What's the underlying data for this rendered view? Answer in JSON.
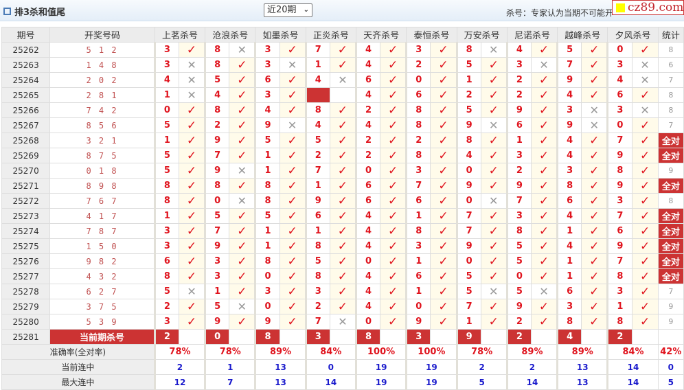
{
  "header": {
    "title": "排3杀和值尾",
    "period_select": "近20期",
    "note": "杀号：专家认为当期不可能开",
    "logo": "cz89.com"
  },
  "columns": {
    "issue": "期号",
    "draw": "开奖号码",
    "experts": [
      "上茗杀号",
      "沧浪杀号",
      "如墨杀号",
      "正炎杀号",
      "天齐杀号",
      "泰恒杀号",
      "万安杀号",
      "尼诺杀号",
      "越峰杀号",
      "夕风杀号"
    ],
    "stat": "统计"
  },
  "all_correct_label": "全对",
  "rows": [
    {
      "issue": "25262",
      "draw": "5 1 2",
      "kill": [
        "3",
        "8",
        "3",
        "7",
        "4",
        "3",
        "8",
        "4",
        "5",
        "0"
      ],
      "hit": [
        1,
        0,
        1,
        1,
        1,
        1,
        0,
        1,
        1,
        1
      ],
      "stat": "8"
    },
    {
      "issue": "25263",
      "draw": "1 4 8",
      "kill": [
        "3",
        "8",
        "3",
        "1",
        "4",
        "2",
        "5",
        "3",
        "7",
        "3"
      ],
      "hit": [
        0,
        1,
        0,
        1,
        1,
        1,
        1,
        0,
        1,
        0
      ],
      "stat": "6"
    },
    {
      "issue": "25264",
      "draw": "2 0 2",
      "kill": [
        "4",
        "5",
        "6",
        "4",
        "6",
        "0",
        "1",
        "2",
        "9",
        "4"
      ],
      "hit": [
        0,
        1,
        1,
        0,
        1,
        1,
        1,
        1,
        1,
        0
      ],
      "stat": "7"
    },
    {
      "issue": "25265",
      "draw": "2 8 1",
      "kill": [
        "1",
        "4",
        "3",
        null,
        "4",
        "6",
        "2",
        "2",
        "4",
        "6"
      ],
      "hit": [
        0,
        1,
        1,
        null,
        1,
        1,
        1,
        1,
        1,
        1
      ],
      "stat": "8"
    },
    {
      "issue": "25266",
      "draw": "7 4 2",
      "kill": [
        "0",
        "8",
        "4",
        "8",
        "2",
        "8",
        "5",
        "9",
        "3",
        "3"
      ],
      "hit": [
        1,
        1,
        1,
        1,
        1,
        1,
        1,
        1,
        0,
        0
      ],
      "stat": "8"
    },
    {
      "issue": "25267",
      "draw": "8 5 6",
      "kill": [
        "5",
        "2",
        "9",
        "4",
        "4",
        "8",
        "9",
        "6",
        "9",
        "0"
      ],
      "hit": [
        1,
        1,
        0,
        1,
        1,
        1,
        0,
        1,
        0,
        1
      ],
      "stat": "7"
    },
    {
      "issue": "25268",
      "draw": "3 2 1",
      "kill": [
        "1",
        "9",
        "5",
        "5",
        "2",
        "2",
        "8",
        "1",
        "4",
        "7"
      ],
      "hit": [
        1,
        1,
        1,
        1,
        1,
        1,
        1,
        1,
        1,
        1
      ],
      "stat": "全对"
    },
    {
      "issue": "25269",
      "draw": "8 7 5",
      "kill": [
        "5",
        "7",
        "1",
        "2",
        "2",
        "8",
        "4",
        "3",
        "4",
        "9"
      ],
      "hit": [
        1,
        1,
        1,
        1,
        1,
        1,
        1,
        1,
        1,
        1
      ],
      "stat": "全对"
    },
    {
      "issue": "25270",
      "draw": "0 1 8",
      "kill": [
        "5",
        "9",
        "1",
        "7",
        "0",
        "3",
        "0",
        "2",
        "3",
        "8"
      ],
      "hit": [
        1,
        0,
        1,
        1,
        1,
        1,
        1,
        1,
        1,
        1
      ],
      "stat": "9"
    },
    {
      "issue": "25271",
      "draw": "8 9 8",
      "kill": [
        "8",
        "8",
        "8",
        "1",
        "6",
        "7",
        "9",
        "9",
        "8",
        "9"
      ],
      "hit": [
        1,
        1,
        1,
        1,
        1,
        1,
        1,
        1,
        1,
        1
      ],
      "stat": "全对"
    },
    {
      "issue": "25272",
      "draw": "7 6 7",
      "kill": [
        "8",
        "0",
        "8",
        "9",
        "6",
        "6",
        "0",
        "7",
        "6",
        "3"
      ],
      "hit": [
        1,
        0,
        1,
        1,
        1,
        1,
        0,
        1,
        1,
        1
      ],
      "stat": "8"
    },
    {
      "issue": "25273",
      "draw": "4 1 7",
      "kill": [
        "1",
        "5",
        "5",
        "6",
        "4",
        "1",
        "7",
        "3",
        "4",
        "7"
      ],
      "hit": [
        1,
        1,
        1,
        1,
        1,
        1,
        1,
        1,
        1,
        1
      ],
      "stat": "全对"
    },
    {
      "issue": "25274",
      "draw": "7 8 7",
      "kill": [
        "3",
        "7",
        "1",
        "1",
        "4",
        "8",
        "7",
        "8",
        "1",
        "6"
      ],
      "hit": [
        1,
        1,
        1,
        1,
        1,
        1,
        1,
        1,
        1,
        1
      ],
      "stat": "全对"
    },
    {
      "issue": "25275",
      "draw": "1 5 0",
      "kill": [
        "3",
        "9",
        "1",
        "8",
        "4",
        "3",
        "9",
        "5",
        "4",
        "9"
      ],
      "hit": [
        1,
        1,
        1,
        1,
        1,
        1,
        1,
        1,
        1,
        1
      ],
      "stat": "全对"
    },
    {
      "issue": "25276",
      "draw": "9 8 2",
      "kill": [
        "6",
        "3",
        "8",
        "5",
        "0",
        "1",
        "0",
        "5",
        "1",
        "7"
      ],
      "hit": [
        1,
        1,
        1,
        1,
        1,
        1,
        1,
        1,
        1,
        1
      ],
      "stat": "全对"
    },
    {
      "issue": "25277",
      "draw": "4 3 2",
      "kill": [
        "8",
        "3",
        "0",
        "8",
        "4",
        "6",
        "5",
        "0",
        "1",
        "8"
      ],
      "hit": [
        1,
        1,
        1,
        1,
        1,
        1,
        1,
        1,
        1,
        1
      ],
      "stat": "全对"
    },
    {
      "issue": "25278",
      "draw": "6 2 7",
      "kill": [
        "5",
        "1",
        "3",
        "3",
        "4",
        "1",
        "5",
        "5",
        "6",
        "3"
      ],
      "hit": [
        0,
        1,
        1,
        1,
        1,
        1,
        0,
        0,
        1,
        1
      ],
      "stat": "7"
    },
    {
      "issue": "25279",
      "draw": "3 7 5",
      "kill": [
        "2",
        "5",
        "0",
        "2",
        "4",
        "0",
        "7",
        "9",
        "3",
        "1"
      ],
      "hit": [
        1,
        0,
        1,
        1,
        1,
        1,
        1,
        1,
        1,
        1
      ],
      "stat": "9"
    },
    {
      "issue": "25280",
      "draw": "5 3 9",
      "kill": [
        "3",
        "9",
        "9",
        "7",
        "0",
        "9",
        "1",
        "2",
        "8",
        "8"
      ],
      "hit": [
        1,
        1,
        1,
        0,
        1,
        1,
        1,
        1,
        1,
        1
      ],
      "stat": "9"
    }
  ],
  "current": {
    "issue": "25281",
    "label": "当前期杀号",
    "kill": [
      "2",
      "0",
      "8",
      "3",
      "8",
      "3",
      "9",
      "2",
      "4",
      "2"
    ]
  },
  "summary": [
    {
      "label": "准确率(全对率)",
      "values": [
        "78%",
        "78%",
        "89%",
        "84%",
        "100%",
        "100%",
        "78%",
        "89%",
        "89%",
        "84%"
      ],
      "stat": "42%"
    },
    {
      "label": "当前连中",
      "values": [
        "2",
        "1",
        "13",
        "0",
        "19",
        "19",
        "2",
        "2",
        "13",
        "14"
      ],
      "stat": "0"
    },
    {
      "label": "最大连中",
      "values": [
        "12",
        "7",
        "13",
        "14",
        "19",
        "19",
        "5",
        "14",
        "13",
        "14"
      ],
      "stat": "5"
    }
  ],
  "icons": {
    "hit": "check-icon",
    "miss": "cross-icon"
  },
  "colors": {
    "accent_red": "#cc3333",
    "kill_number": "#e0141e",
    "streak_blue": "#1a1acc"
  }
}
